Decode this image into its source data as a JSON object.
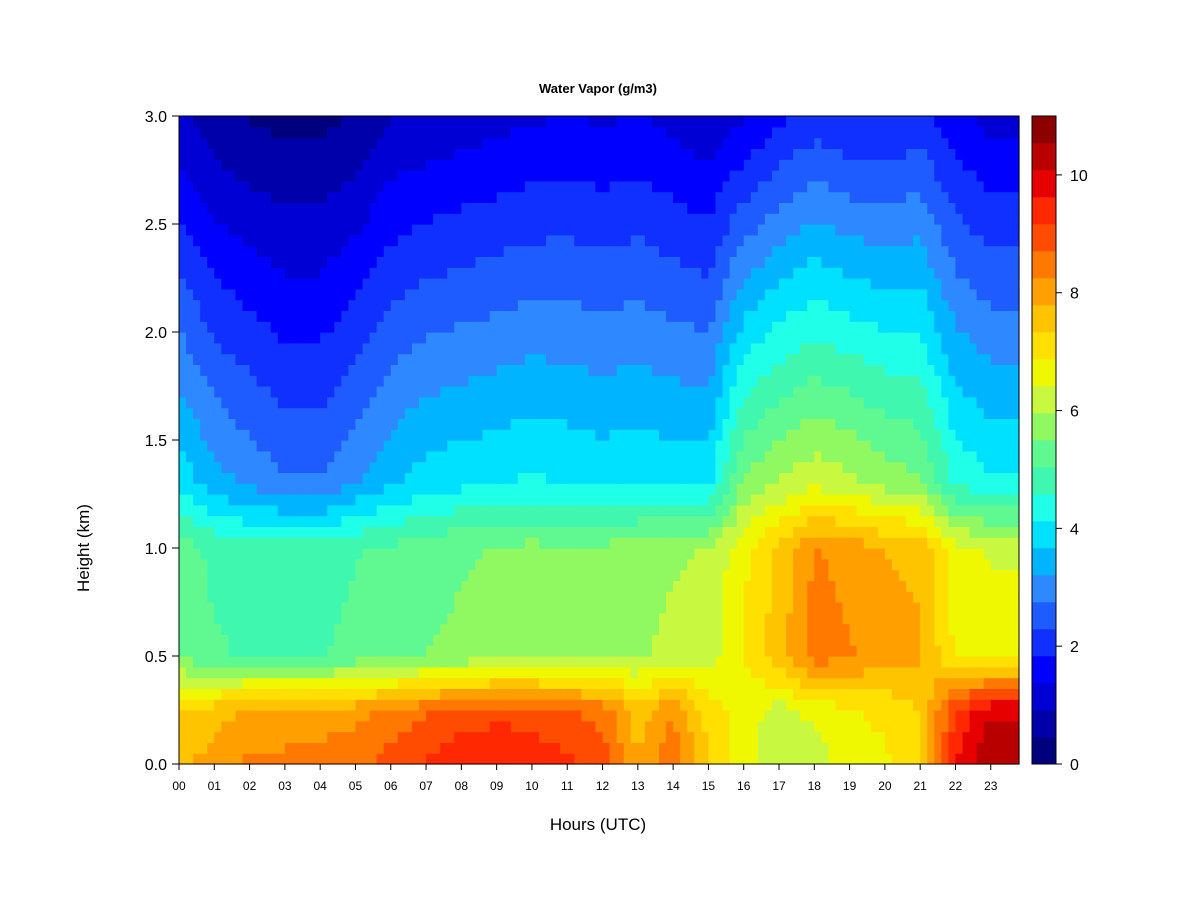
{
  "chart_data": {
    "type": "heatmap",
    "title": "Water Vapor (g/m3)",
    "xlabel": "Hours (UTC)",
    "ylabel": "Height (km)",
    "x_ticks": [
      "00",
      "01",
      "02",
      "03",
      "04",
      "05",
      "06",
      "07",
      "08",
      "09",
      "10",
      "11",
      "12",
      "13",
      "14",
      "15",
      "16",
      "17",
      "18",
      "19",
      "20",
      "21",
      "22",
      "23"
    ],
    "x_range": [
      0,
      23.8
    ],
    "y_ticks": [
      "0.0",
      "0.5",
      "1.0",
      "1.5",
      "2.0",
      "2.5",
      "3.0"
    ],
    "y_range": [
      0,
      3.0
    ],
    "colorbar": {
      "ticks": [
        "0",
        "2",
        "4",
        "6",
        "8",
        "10"
      ],
      "range": [
        0,
        11
      ],
      "levels": [
        "#00007F",
        "#0000AA",
        "#0000D4",
        "#0000FF",
        "#1030FF",
        "#1E5CFF",
        "#2E88FF",
        "#00B4FF",
        "#00E0FF",
        "#20FFE8",
        "#40F7B0",
        "#60F890",
        "#90F860",
        "#C8F840",
        "#F0F800",
        "#FFE000",
        "#FFC400",
        "#FFA000",
        "#FF7800",
        "#FF4C00",
        "#FF2800",
        "#E60000",
        "#B80000",
        "#8C0000"
      ]
    },
    "hour_profiles": [
      {
        "hour": 0,
        "surface": 7.7,
        "low": 5.4,
        "mid": 4.0,
        "top": 1.0
      },
      {
        "hour": 1,
        "surface": 8.0,
        "low": 5.1,
        "mid": 3.4,
        "top": 0.6
      },
      {
        "hour": 2,
        "surface": 8.4,
        "low": 5.0,
        "mid": 3.1,
        "top": 0.4
      },
      {
        "hour": 3,
        "surface": 8.4,
        "low": 5.0,
        "mid": 2.8,
        "top": 0.3
      },
      {
        "hour": 4,
        "surface": 8.5,
        "low": 5.0,
        "mid": 2.8,
        "top": 0.3
      },
      {
        "hour": 5,
        "surface": 8.6,
        "low": 5.2,
        "mid": 3.2,
        "top": 0.5
      },
      {
        "hour": 6,
        "surface": 8.9,
        "low": 5.3,
        "mid": 3.6,
        "top": 0.9
      },
      {
        "hour": 7,
        "surface": 9.2,
        "low": 5.5,
        "mid": 3.9,
        "top": 1.0
      },
      {
        "hour": 8,
        "surface": 9.5,
        "low": 5.6,
        "mid": 4.0,
        "top": 1.1
      },
      {
        "hour": 9,
        "surface": 9.6,
        "low": 5.7,
        "mid": 4.1,
        "top": 1.2
      },
      {
        "hour": 10,
        "surface": 9.5,
        "low": 5.8,
        "mid": 4.2,
        "top": 1.3
      },
      {
        "hour": 11,
        "surface": 9.3,
        "low": 5.7,
        "mid": 4.1,
        "top": 1.4
      },
      {
        "hour": 12,
        "surface": 9.0,
        "low": 5.8,
        "mid": 4.0,
        "top": 1.3
      },
      {
        "hour": 13,
        "surface": 7.8,
        "low": 5.9,
        "mid": 4.1,
        "top": 1.4
      },
      {
        "hour": 14,
        "surface": 8.6,
        "low": 6.1,
        "mid": 4.0,
        "top": 1.2
      },
      {
        "hour": 15,
        "surface": 7.3,
        "low": 6.2,
        "mid": 4.0,
        "top": 1.0
      },
      {
        "hour": 16,
        "surface": 6.6,
        "low": 6.9,
        "mid": 5.6,
        "top": 1.3
      },
      {
        "hour": 17,
        "surface": 6.0,
        "low": 7.6,
        "mid": 6.0,
        "top": 1.7
      },
      {
        "hour": 18,
        "surface": 6.2,
        "low": 8.5,
        "mid": 6.3,
        "top": 2.0
      },
      {
        "hour": 19,
        "surface": 6.6,
        "low": 8.3,
        "mid": 6.1,
        "top": 1.8
      },
      {
        "hour": 20,
        "surface": 6.8,
        "low": 8.0,
        "mid": 5.8,
        "top": 1.8
      },
      {
        "hour": 21,
        "surface": 7.2,
        "low": 7.9,
        "mid": 5.6,
        "top": 2.0
      },
      {
        "hour": 22,
        "surface": 9.6,
        "low": 6.8,
        "mid": 4.5,
        "top": 1.5
      },
      {
        "hour": 23,
        "surface": 10.6,
        "low": 6.6,
        "mid": 4.2,
        "top": 1.2
      }
    ]
  }
}
